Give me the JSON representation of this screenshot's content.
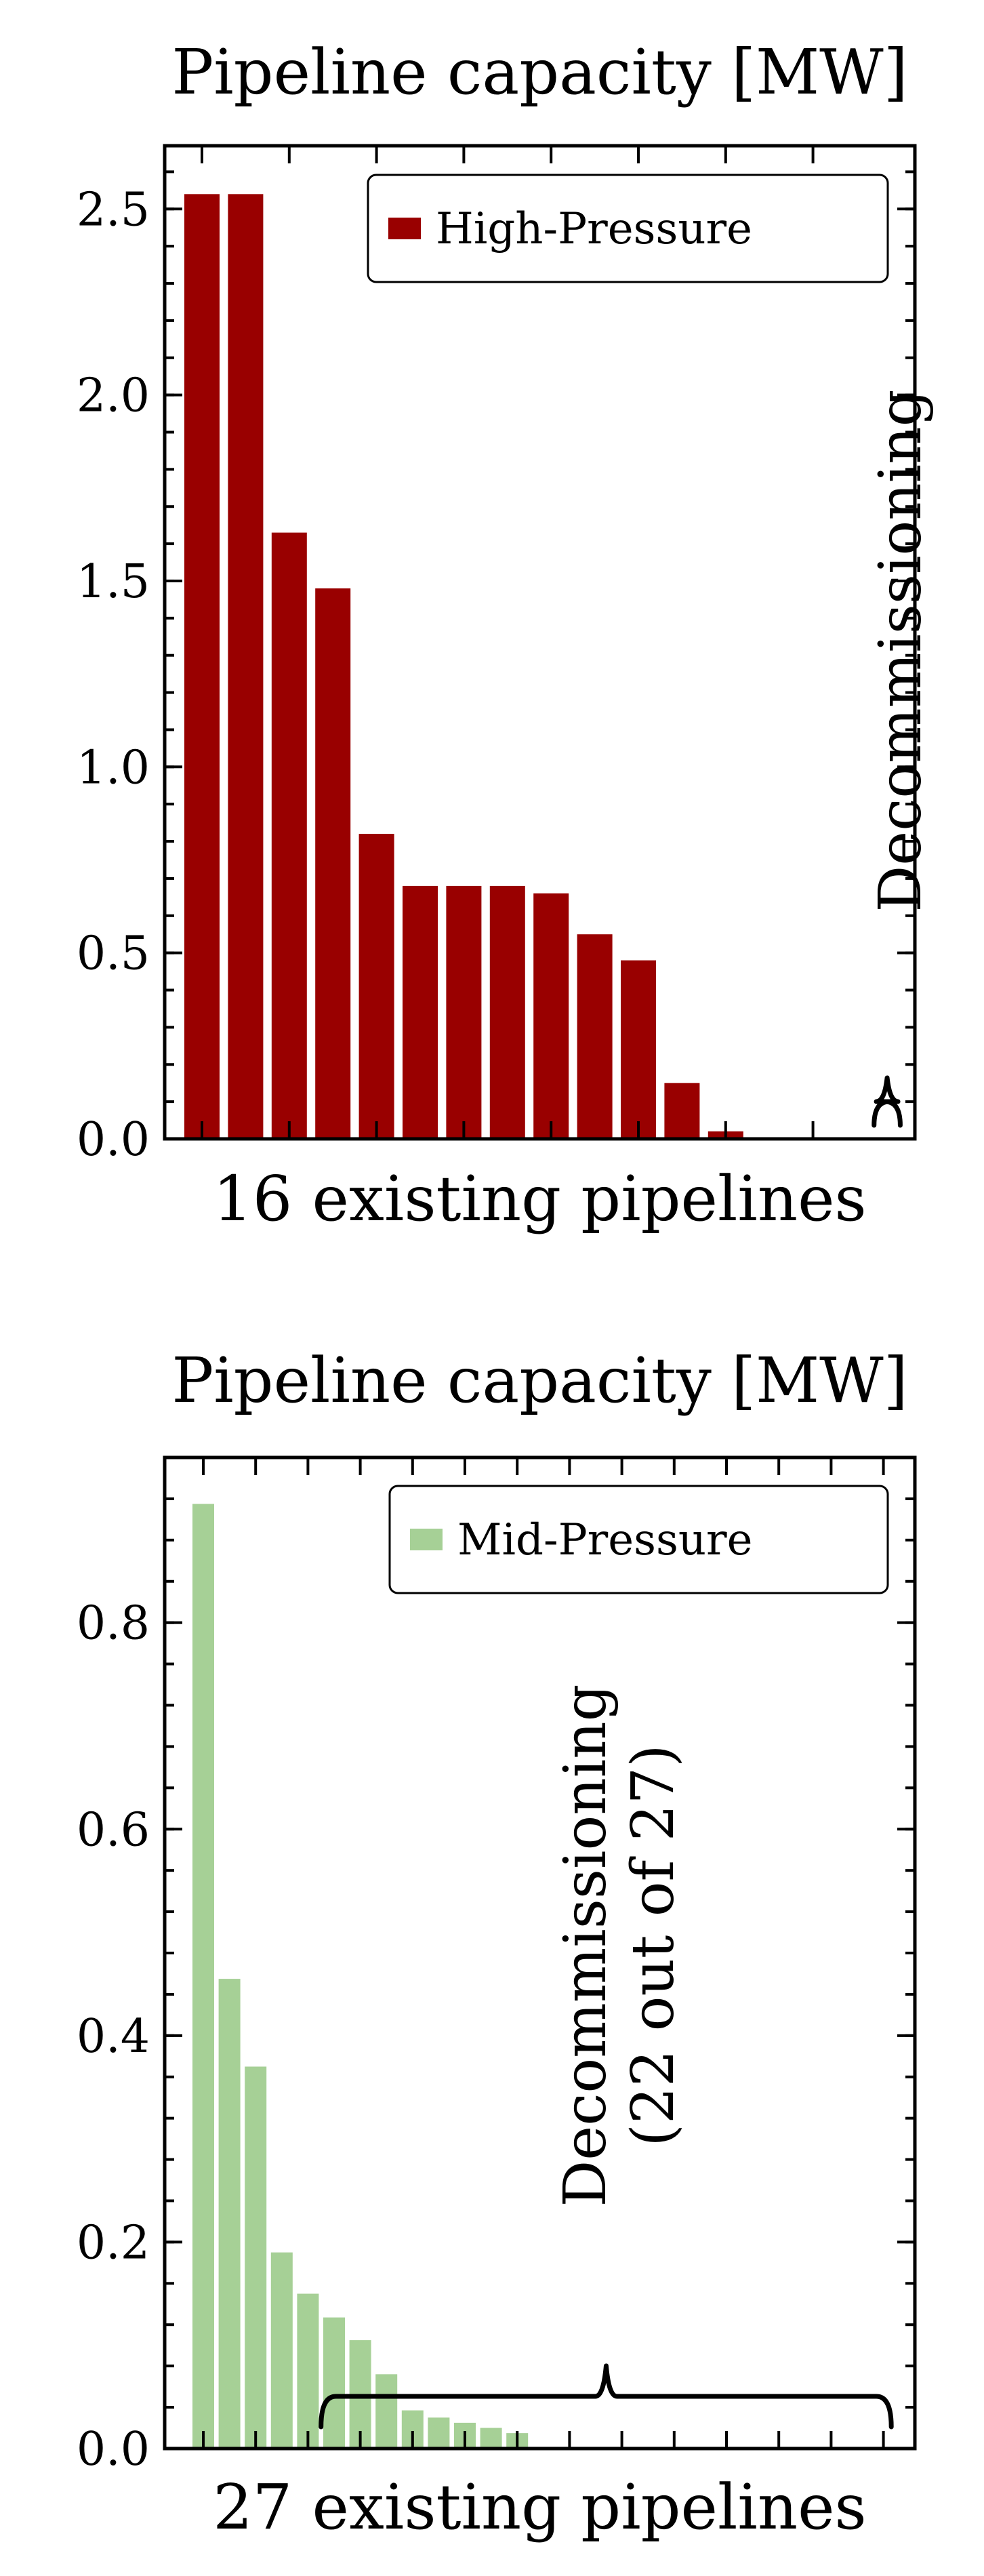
{
  "chart_data": [
    {
      "type": "bar",
      "title": "Pipeline capacity [MW]",
      "xlabel": "16 existing pipelines",
      "ylabel": "",
      "ylim": [
        0,
        2.67
      ],
      "yticks": [
        "0.0",
        "0.5",
        "1.0",
        "1.5",
        "2.0",
        "2.5"
      ],
      "ytick_values": [
        0.0,
        0.5,
        1.0,
        1.5,
        2.0,
        2.5
      ],
      "legend": {
        "label": "High-Pressure",
        "placement": "top-right"
      },
      "color": "#990000",
      "series": [
        {
          "values": [
            2.54,
            2.54,
            1.63,
            1.48,
            0.82,
            0.68,
            0.68,
            0.68,
            0.66,
            0.55,
            0.48,
            0.15,
            0.02,
            0,
            0,
            0
          ]
        }
      ],
      "annotation": {
        "lines": [
          "Decommissioning"
        ],
        "brace_from": 15.4,
        "brace_to": 16.0
      }
    },
    {
      "type": "bar",
      "title": "Pipeline capacity [MW]",
      "xlabel": "27 existing pipelines",
      "ylabel": "",
      "ylim": [
        0,
        0.96
      ],
      "yticks": [
        "0.0",
        "0.2",
        "0.4",
        "0.6",
        "0.8"
      ],
      "ytick_values": [
        0.0,
        0.2,
        0.4,
        0.6,
        0.8
      ],
      "legend": {
        "label": "Mid-Pressure",
        "placement": "top-right"
      },
      "color": "#a6d096",
      "series": [
        {
          "values": [
            0.915,
            0.455,
            0.37,
            0.19,
            0.15,
            0.127,
            0.105,
            0.072,
            0.037,
            0.03,
            0.025,
            0.02,
            0.015,
            0,
            0,
            0,
            0,
            0,
            0,
            0,
            0,
            0,
            0,
            0,
            0,
            0,
            0
          ]
        }
      ],
      "annotation": {
        "lines": [
          "Decommissioning",
          "(22 out of 27)"
        ],
        "brace_from": 4.5,
        "brace_to": 26.3
      }
    }
  ]
}
